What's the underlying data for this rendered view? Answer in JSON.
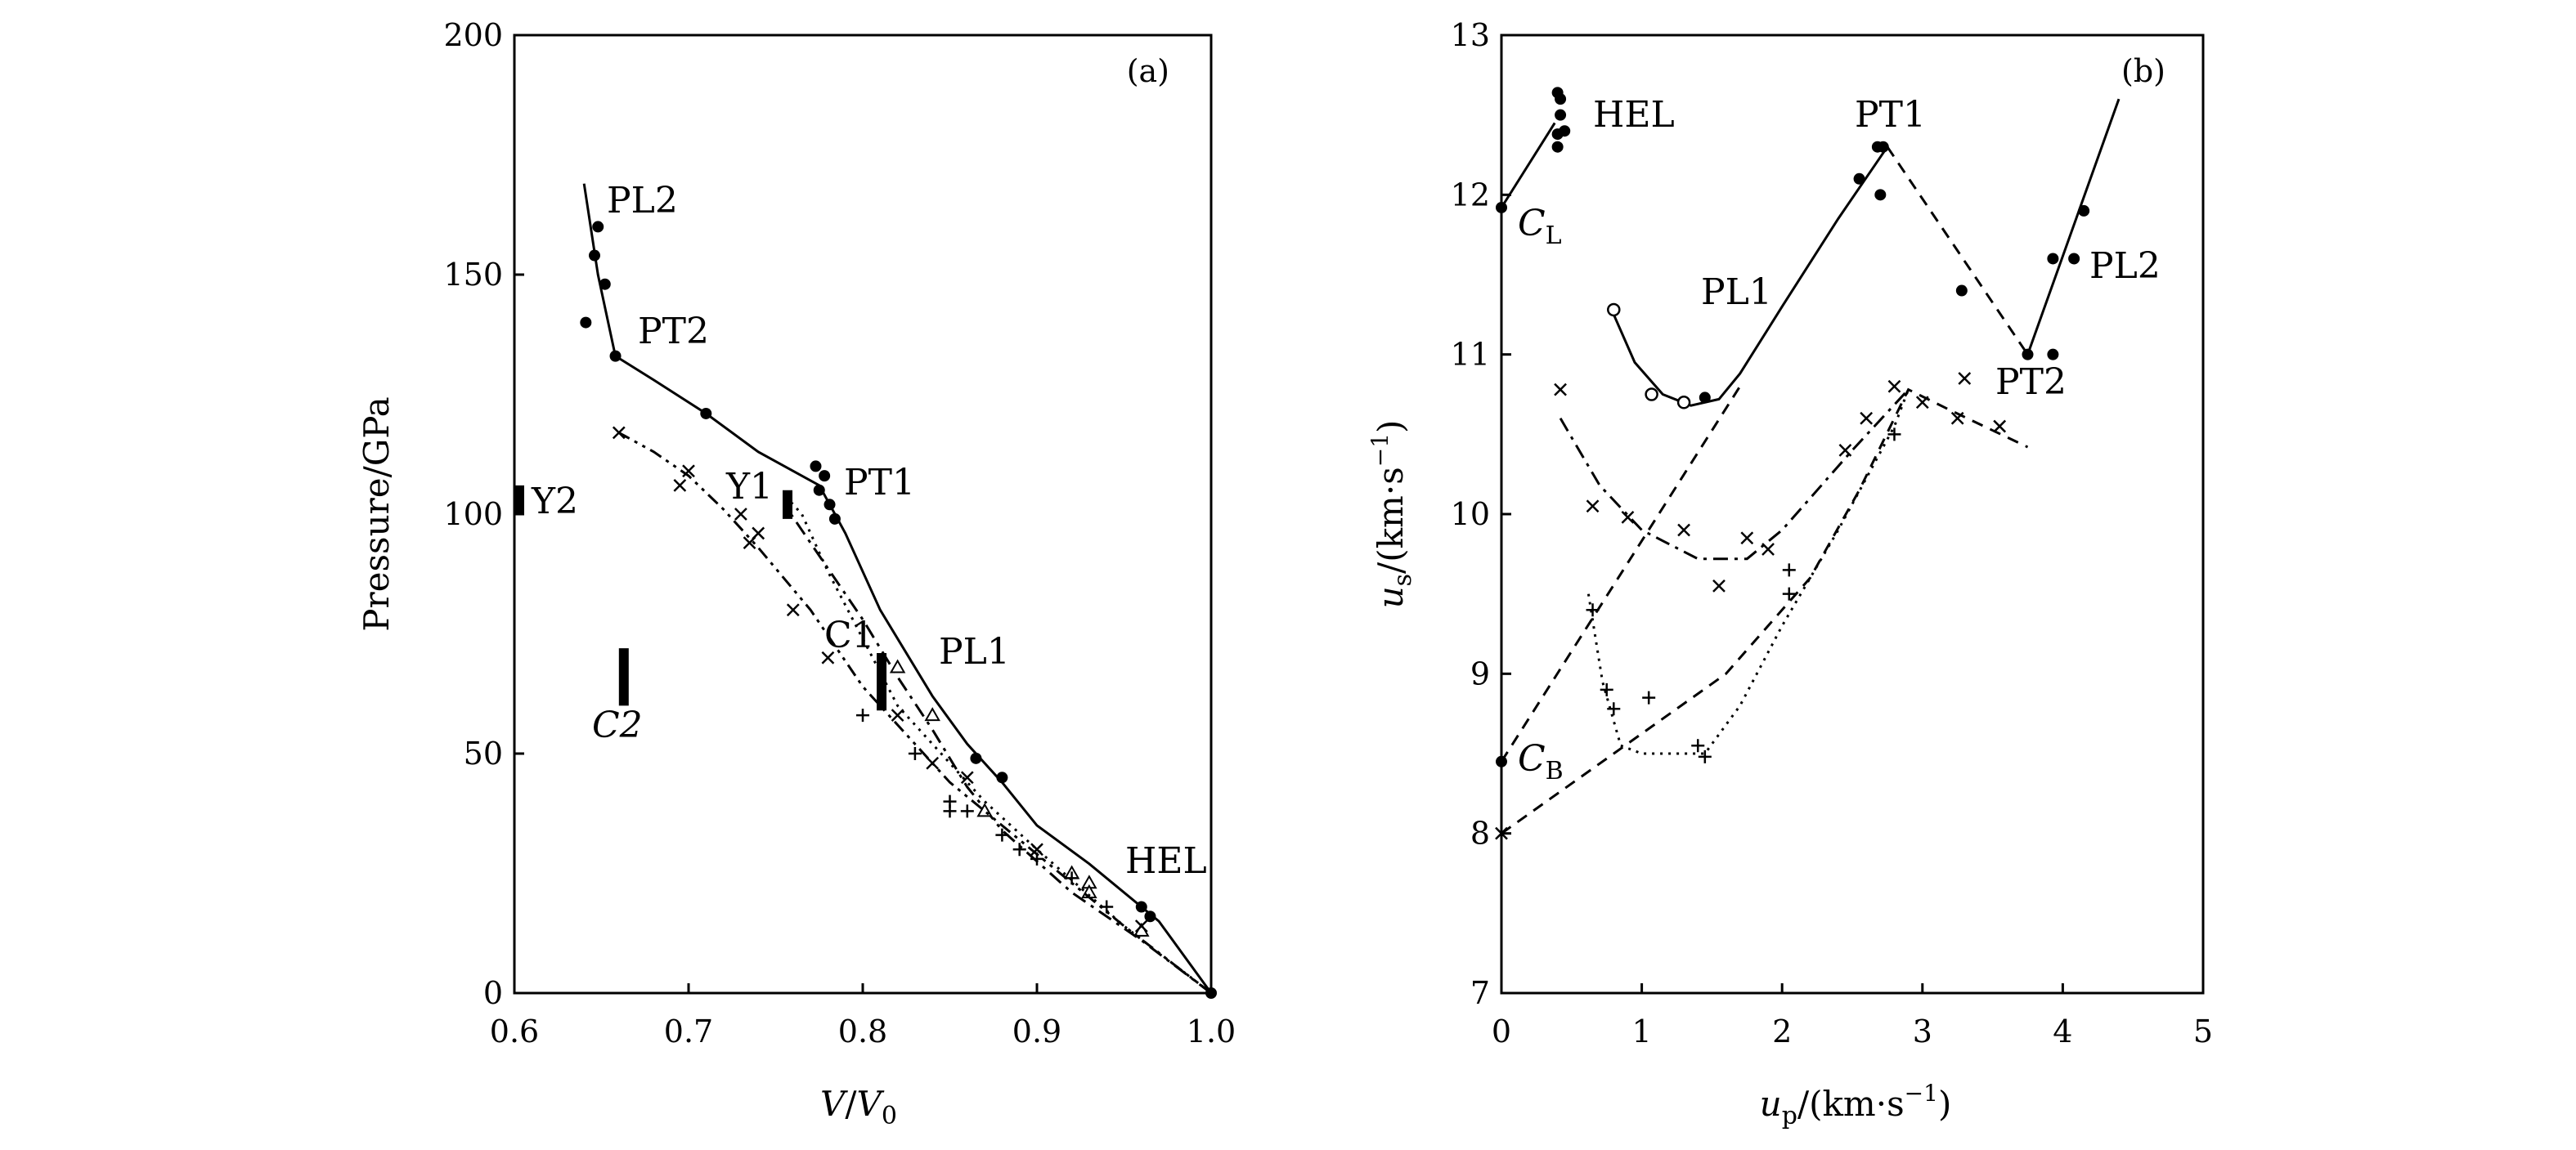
{
  "chart_data": [
    {
      "type": "line",
      "panel_label": "(a)",
      "xlabel": {
        "main": "V",
        "sep": "/",
        "var": "V",
        "sub": "0"
      },
      "ylabel": "Pressure/GPa",
      "xlim": [
        0.6,
        1.0
      ],
      "ylim": [
        0,
        200
      ],
      "xticks": [
        0.6,
        0.7,
        0.8,
        0.9,
        1.0
      ],
      "xtick_labels": [
        "0.6",
        "0.7",
        "0.8",
        "0.9",
        "1.0"
      ],
      "yticks": [
        0,
        50,
        100,
        150,
        200
      ],
      "ytick_labels": [
        "0",
        "50",
        "100",
        "150",
        "200"
      ],
      "series": [
        {
          "style": "solid",
          "curve": [
            [
              1.0,
              0
            ],
            [
              0.97,
              15
            ],
            [
              0.93,
              27
            ],
            [
              0.9,
              35
            ],
            [
              0.88,
              44
            ],
            [
              0.86,
              52
            ],
            [
              0.84,
              62
            ],
            [
              0.81,
              80
            ],
            [
              0.79,
              96
            ],
            [
              0.775,
              106
            ],
            [
              0.74,
              113
            ],
            [
              0.71,
              121
            ],
            [
              0.68,
              128
            ],
            [
              0.658,
              133
            ],
            [
              0.648,
              150
            ],
            [
              0.64,
              169
            ]
          ],
          "markers": "filled",
          "points": [
            [
              1.0,
              0
            ],
            [
              0.965,
              16
            ],
            [
              0.96,
              18
            ],
            [
              0.88,
              45
            ],
            [
              0.865,
              49
            ],
            [
              0.784,
              99
            ],
            [
              0.781,
              102
            ],
            [
              0.778,
              108
            ],
            [
              0.773,
              110
            ],
            [
              0.775,
              105
            ],
            [
              0.71,
              121
            ],
            [
              0.658,
              133
            ],
            [
              0.652,
              148
            ],
            [
              0.646,
              154
            ],
            [
              0.648,
              160
            ],
            [
              0.641,
              140
            ]
          ]
        },
        {
          "style": "dash-dot",
          "curve": [
            [
              1.0,
              0
            ],
            [
              0.96,
              11
            ],
            [
              0.92,
              21
            ],
            [
              0.88,
              34
            ],
            [
              0.86,
              43
            ],
            [
              0.84,
              55
            ],
            [
              0.82,
              66
            ],
            [
              0.8,
              78
            ],
            [
              0.77,
              94
            ],
            [
              0.755,
              102
            ]
          ],
          "markers": "open-triangle",
          "points": [
            [
              0.93,
              23
            ],
            [
              0.93,
              21
            ],
            [
              0.92,
              25
            ],
            [
              0.96,
              13
            ],
            [
              0.87,
              38
            ],
            [
              0.84,
              58
            ],
            [
              0.82,
              68
            ]
          ]
        },
        {
          "style": "dotted",
          "curve": [
            [
              1.0,
              0
            ],
            [
              0.95,
              14
            ],
            [
              0.9,
              30
            ],
            [
              0.87,
              40
            ],
            [
              0.85,
              48
            ],
            [
              0.82,
              60
            ],
            [
              0.8,
              74
            ],
            [
              0.78,
              88
            ],
            [
              0.765,
              100
            ],
            [
              0.755,
              104
            ]
          ],
          "markers": "plus",
          "points": [
            [
              0.92,
              24
            ],
            [
              0.9,
              28
            ],
            [
              0.88,
              33
            ],
            [
              0.86,
              38
            ],
            [
              0.85,
              40
            ],
            [
              0.83,
              50
            ],
            [
              0.8,
              58
            ],
            [
              0.85,
              38
            ],
            [
              0.89,
              30
            ],
            [
              0.94,
              18
            ]
          ]
        },
        {
          "style": "dash-dot-dot",
          "curve": [
            [
              1.0,
              0
            ],
            [
              0.95,
              14
            ],
            [
              0.9,
              29
            ],
            [
              0.85,
              44
            ],
            [
              0.8,
              64
            ],
            [
              0.77,
              80
            ],
            [
              0.74,
              93
            ],
            [
              0.72,
              101
            ],
            [
              0.7,
              108
            ],
            [
              0.68,
              113
            ],
            [
              0.66,
              117
            ]
          ],
          "markers": "cross",
          "points": [
            [
              0.66,
              117
            ],
            [
              0.7,
              109
            ],
            [
              0.695,
              106
            ],
            [
              0.73,
              100
            ],
            [
              0.735,
              94
            ],
            [
              0.74,
              96
            ],
            [
              0.76,
              80
            ],
            [
              0.78,
              70
            ],
            [
              0.82,
              58
            ],
            [
              0.84,
              48
            ],
            [
              0.86,
              45
            ],
            [
              0.9,
              30
            ],
            [
              0.96,
              14
            ]
          ]
        }
      ],
      "annotations": [
        {
          "text": "PL2"
        },
        {
          "text": "PT2"
        },
        {
          "text": "PT1"
        },
        {
          "text": "Y1"
        },
        {
          "text": "Y2"
        },
        {
          "text": "C1"
        },
        {
          "text": "PL1"
        },
        {
          "text": "C2"
        },
        {
          "text": "HEL"
        }
      ],
      "bar_markers": [
        {
          "name": "Y2",
          "x": 0.6,
          "y": [
            100,
            106
          ]
        },
        {
          "name": "Y1",
          "x": 0.754,
          "y": [
            99,
            105
          ]
        },
        {
          "name": "C1",
          "x": 0.808,
          "y": [
            59,
            71
          ]
        },
        {
          "name": "C2",
          "x": 0.66,
          "y": [
            60,
            72
          ]
        }
      ]
    },
    {
      "type": "line",
      "panel_label": "(b)",
      "xlabel": {
        "var": "u",
        "sub": "p",
        "unit": "/(km·s",
        "sup": "−1",
        "close": ")"
      },
      "ylabel": {
        "var": "u",
        "sub": "s",
        "unit": "/(km·s",
        "sup": "−1",
        "close": ")"
      },
      "xlim": [
        0,
        5
      ],
      "ylim": [
        7,
        13
      ],
      "xticks": [
        0,
        1,
        2,
        3,
        4,
        5
      ],
      "xtick_labels": [
        "0",
        "1",
        "2",
        "3",
        "4",
        "5"
      ],
      "yticks": [
        7,
        8,
        9,
        10,
        11,
        12,
        13
      ],
      "ytick_labels": [
        "7",
        "8",
        "9",
        "10",
        "11",
        "12",
        "13"
      ],
      "series": [
        {
          "style": "solid",
          "curve": [
            [
              0,
              11.92
            ],
            [
              0.38,
              12.45
            ]
          ],
          "markers": "filled",
          "points": [
            [
              0,
              11.92
            ],
            [
              0.4,
              12.64
            ],
            [
              0.42,
              12.6
            ],
            [
              0.42,
              12.5
            ],
            [
              0.45,
              12.4
            ],
            [
              0.4,
              12.38
            ],
            [
              0.4,
              12.3
            ]
          ]
        },
        {
          "style": "solid",
          "curve": [
            [
              0.8,
              11.25
            ],
            [
              0.95,
              10.95
            ],
            [
              1.15,
              10.75
            ],
            [
              1.35,
              10.68
            ],
            [
              1.55,
              10.72
            ],
            [
              1.7,
              10.88
            ],
            [
              2.0,
              11.3
            ],
            [
              2.4,
              11.85
            ],
            [
              2.75,
              12.3
            ]
          ],
          "markers": "mixed",
          "points": [
            [
              0.8,
              11.28
            ],
            [
              1.07,
              10.75
            ],
            [
              1.3,
              10.7
            ],
            [
              1.45,
              10.73
            ],
            [
              2.55,
              12.1
            ],
            [
              2.7,
              12.0
            ],
            [
              2.68,
              12.3
            ],
            [
              2.72,
              12.3
            ]
          ]
        },
        {
          "style": "dashed",
          "curve": [
            [
              2.75,
              12.3
            ],
            [
              3.75,
              11.0
            ]
          ],
          "markers": "filled",
          "points": [
            [
              3.28,
              11.4
            ]
          ]
        },
        {
          "style": "solid",
          "curve": [
            [
              3.75,
              11.0
            ],
            [
              4.4,
              12.6
            ]
          ],
          "markers": "filled",
          "points": [
            [
              3.75,
              11.0
            ],
            [
              3.93,
              11.6
            ],
            [
              4.08,
              11.6
            ],
            [
              4.15,
              11.9
            ],
            [
              3.93,
              11.0
            ]
          ]
        },
        {
          "style": "dashed",
          "curve": [
            [
              0,
              8.45
            ],
            [
              1.7,
              10.8
            ]
          ],
          "markers": "filled",
          "points": [
            [
              0,
              8.45
            ]
          ]
        },
        {
          "style": "dashed",
          "curve": [
            [
              0,
              8.0
            ],
            [
              0.8,
              8.5
            ],
            [
              1.6,
              9.0
            ],
            [
              2.2,
              9.6
            ],
            [
              2.55,
              10.15
            ],
            [
              2.9,
              10.78
            ],
            [
              3.2,
              10.65
            ],
            [
              3.75,
              10.42
            ]
          ],
          "markers": "cross",
          "points": [
            [
              0,
              8.0
            ],
            [
              2.45,
              10.4
            ],
            [
              2.6,
              10.6
            ],
            [
              2.8,
              10.8
            ],
            [
              3.0,
              10.7
            ],
            [
              3.3,
              10.85
            ],
            [
              3.25,
              10.6
            ],
            [
              3.55,
              10.55
            ]
          ]
        },
        {
          "style": "dash-dot",
          "curve": [
            [
              0.42,
              10.6
            ],
            [
              0.7,
              10.18
            ],
            [
              1.0,
              9.9
            ],
            [
              1.4,
              9.72
            ],
            [
              1.75,
              9.72
            ],
            [
              2.0,
              9.9
            ],
            [
              2.5,
              10.4
            ],
            [
              2.9,
              10.78
            ]
          ],
          "markers": "cross",
          "points": [
            [
              0.42,
              10.78
            ],
            [
              0.65,
              10.05
            ],
            [
              0.9,
              9.98
            ],
            [
              1.3,
              9.9
            ],
            [
              1.75,
              9.85
            ],
            [
              1.55,
              9.55
            ],
            [
              1.9,
              9.78
            ]
          ]
        },
        {
          "style": "dotted",
          "curve": [
            [
              0.62,
              9.5
            ],
            [
              0.72,
              8.95
            ],
            [
              0.85,
              8.55
            ],
            [
              1.0,
              8.5
            ],
            [
              1.45,
              8.5
            ],
            [
              1.7,
              8.8
            ],
            [
              2.0,
              9.3
            ],
            [
              2.4,
              9.9
            ],
            [
              2.8,
              10.55
            ],
            [
              2.9,
              10.78
            ]
          ],
          "markers": "plus",
          "points": [
            [
              0.65,
              9.4
            ],
            [
              0.75,
              8.9
            ],
            [
              0.8,
              8.78
            ],
            [
              1.05,
              8.85
            ],
            [
              1.4,
              8.55
            ],
            [
              1.45,
              8.48
            ],
            [
              2.05,
              9.65
            ],
            [
              2.05,
              9.5
            ],
            [
              2.8,
              10.5
            ]
          ]
        }
      ],
      "annotations": [
        {
          "text": "HEL"
        },
        {
          "text": "PT1"
        },
        {
          "text": "PL1"
        },
        {
          "text": "PL2"
        },
        {
          "text": "PT2"
        }
      ],
      "subscript_annotations": [
        {
          "main": "C",
          "sub": "L"
        },
        {
          "main": "C",
          "sub": "B"
        }
      ]
    }
  ]
}
